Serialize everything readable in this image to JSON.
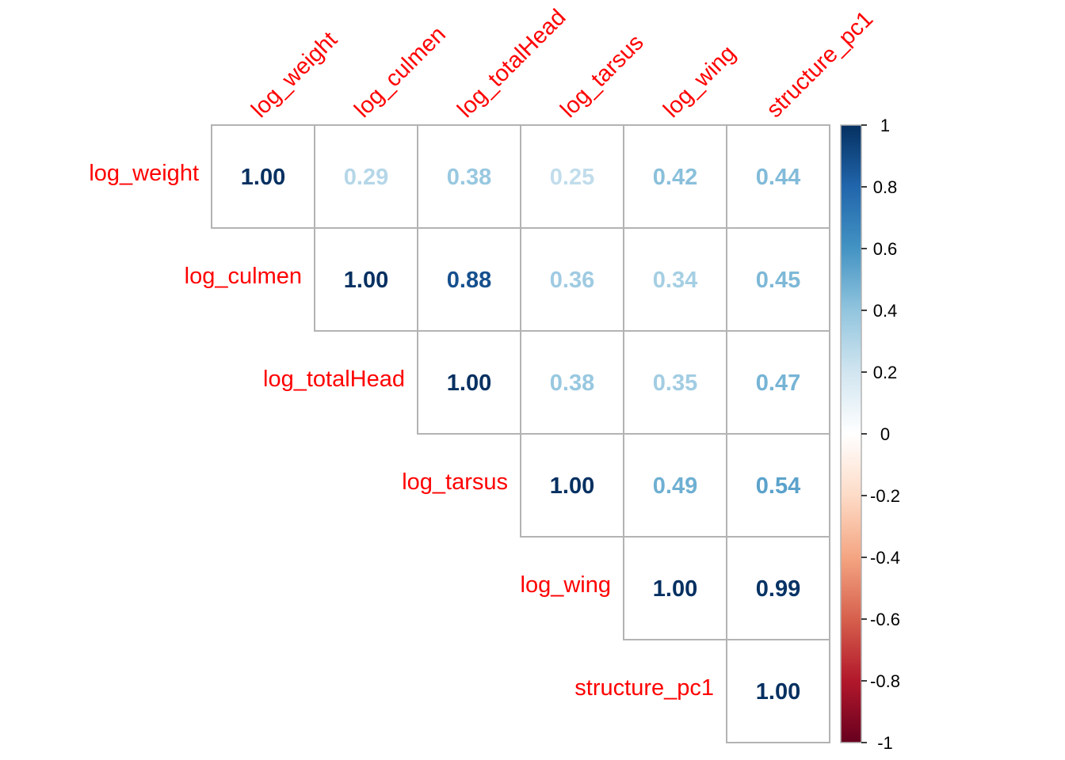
{
  "chart_data": {
    "type": "heatmap",
    "variables": [
      "log_weight",
      "log_culmen",
      "log_totalHead",
      "log_tarsus",
      "log_wing",
      "structure_pc1"
    ],
    "matrix": [
      [
        1.0,
        0.29,
        0.38,
        0.25,
        0.42,
        0.44
      ],
      [
        null,
        1.0,
        0.88,
        0.36,
        0.34,
        0.45
      ],
      [
        null,
        null,
        1.0,
        0.38,
        0.35,
        0.47
      ],
      [
        null,
        null,
        null,
        1.0,
        0.49,
        0.54
      ],
      [
        null,
        null,
        null,
        null,
        1.0,
        0.99
      ],
      [
        null,
        null,
        null,
        null,
        null,
        1.0
      ]
    ],
    "triangle": "upper",
    "label_color": "#ff0000",
    "colorbar": {
      "range": [
        -1,
        1
      ],
      "ticks": [
        "1",
        "0.8",
        "0.6",
        "0.4",
        "0.2",
        "0",
        "-0.2",
        "-0.4",
        "-0.6",
        "-0.8",
        "-1"
      ],
      "colors": [
        "#67001f",
        "#b2182b",
        "#d6604d",
        "#f4a582",
        "#fddbc7",
        "#ffffff",
        "#d1e5f0",
        "#92c5de",
        "#4393c3",
        "#2166ac",
        "#053061"
      ]
    },
    "cell_border_color": "#b3b3b3"
  }
}
